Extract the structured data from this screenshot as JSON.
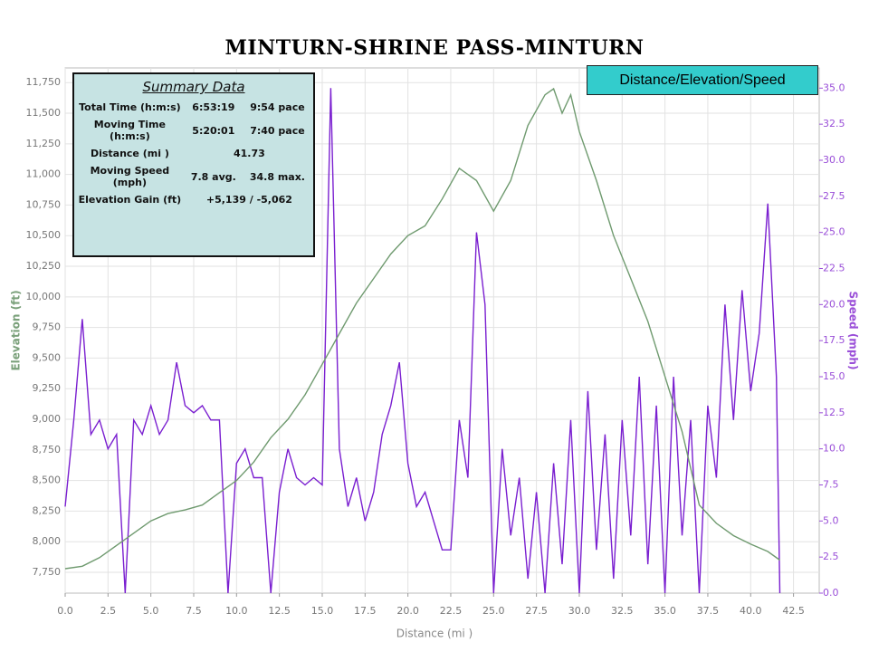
{
  "chart_data": {
    "type": "line",
    "title": "MINTURN-SHRINE PASS-MINTURN",
    "legend_label": "Distance/Elevation/Speed",
    "xlabel": "Distance (mi )",
    "ylabel": "Elevation (ft)",
    "y2label": "Speed (mph)",
    "xlim": [
      0,
      44
    ],
    "ylim": [
      7580,
      11870
    ],
    "y2lim": [
      0,
      36.4
    ],
    "grid": true,
    "xticks": [
      {
        "value": 0,
        "label": "0.0"
      },
      {
        "value": 2.5,
        "label": "2.5"
      },
      {
        "value": 5,
        "label": "5.0"
      },
      {
        "value": 7.5,
        "label": "7.5"
      },
      {
        "value": 10,
        "label": "10.0"
      },
      {
        "value": 12.5,
        "label": "12.5"
      },
      {
        "value": 15,
        "label": "15.0"
      },
      {
        "value": 17.5,
        "label": "17.5"
      },
      {
        "value": 20,
        "label": "20.0"
      },
      {
        "value": 22.5,
        "label": "22.5"
      },
      {
        "value": 25,
        "label": "25.0"
      },
      {
        "value": 27.5,
        "label": "27.5"
      },
      {
        "value": 30,
        "label": "30.0"
      },
      {
        "value": 32.5,
        "label": "32.5"
      },
      {
        "value": 35,
        "label": "35.0"
      },
      {
        "value": 37.5,
        "label": "37.5"
      },
      {
        "value": 40,
        "label": "40.0"
      },
      {
        "value": 42.5,
        "label": "42.5"
      }
    ],
    "yticks": [
      {
        "value": 7750,
        "label": "7,750"
      },
      {
        "value": 8000,
        "label": "8,000"
      },
      {
        "value": 8250,
        "label": "8,250"
      },
      {
        "value": 8500,
        "label": "8,500"
      },
      {
        "value": 8750,
        "label": "8,750"
      },
      {
        "value": 9000,
        "label": "9,000"
      },
      {
        "value": 9250,
        "label": "9,250"
      },
      {
        "value": 9500,
        "label": "9,500"
      },
      {
        "value": 9750,
        "label": "9,750"
      },
      {
        "value": 10000,
        "label": "10,000"
      },
      {
        "value": 10250,
        "label": "10,250"
      },
      {
        "value": 10500,
        "label": "10,500"
      },
      {
        "value": 10750,
        "label": "10,750"
      },
      {
        "value": 11000,
        "label": "11,000"
      },
      {
        "value": 11250,
        "label": "11,250"
      },
      {
        "value": 11500,
        "label": "11,500"
      },
      {
        "value": 11750,
        "label": "11,750"
      }
    ],
    "y2ticks": [
      {
        "value": 0,
        "label": "0.0"
      },
      {
        "value": 2.5,
        "label": "2.5"
      },
      {
        "value": 5,
        "label": "5.0"
      },
      {
        "value": 7.5,
        "label": "7.5"
      },
      {
        "value": 10,
        "label": "10.0"
      },
      {
        "value": 12.5,
        "label": "12.5"
      },
      {
        "value": 15,
        "label": "15.0"
      },
      {
        "value": 17.5,
        "label": "17.5"
      },
      {
        "value": 20,
        "label": "20.0"
      },
      {
        "value": 22.5,
        "label": "22.5"
      },
      {
        "value": 25,
        "label": "25.0"
      },
      {
        "value": 27.5,
        "label": "27.5"
      },
      {
        "value": 30,
        "label": "30.0"
      },
      {
        "value": 32.5,
        "label": "32.5"
      },
      {
        "value": 35,
        "label": "35.0"
      }
    ],
    "series": [
      {
        "color": "#6f9a6f",
        "axis": "y",
        "x": [
          0,
          1,
          2,
          3,
          4,
          5,
          6,
          7,
          8,
          9,
          10,
          11,
          12,
          13,
          14,
          15,
          16,
          17,
          18,
          19,
          20,
          21,
          22,
          23,
          24,
          25,
          26,
          27,
          28,
          28.5,
          29,
          29.5,
          30,
          31,
          32,
          33,
          34,
          35,
          36,
          37,
          38,
          39,
          40,
          41,
          41.7
        ],
        "values": [
          7780,
          7800,
          7870,
          7970,
          8070,
          8170,
          8230,
          8260,
          8300,
          8400,
          8500,
          8650,
          8850,
          9000,
          9200,
          9450,
          9700,
          9950,
          10150,
          10350,
          10500,
          10580,
          10800,
          11050,
          10950,
          10700,
          10950,
          11400,
          11650,
          11700,
          11500,
          11650,
          11350,
          10950,
          10500,
          10150,
          9800,
          9350,
          8900,
          8300,
          8150,
          8050,
          7980,
          7920,
          7850
        ]
      },
      {
        "color": "#7a1fd0",
        "axis": "y2",
        "x": [
          0,
          0.5,
          1,
          1.5,
          2,
          2.5,
          3,
          3.5,
          4,
          4.5,
          5,
          5.5,
          6,
          6.5,
          7,
          7.5,
          8,
          8.5,
          9,
          9.5,
          10,
          10.5,
          11,
          11.5,
          12,
          12.5,
          13,
          13.5,
          14,
          14.5,
          15,
          15.5,
          16,
          16.5,
          17,
          17.5,
          18,
          18.5,
          19,
          19.5,
          20,
          20.5,
          21,
          21.5,
          22,
          22.5,
          23,
          23.5,
          24,
          24.5,
          25,
          25.5,
          26,
          26.5,
          27,
          27.5,
          28,
          28.5,
          29,
          29.5,
          30,
          30.5,
          31,
          31.5,
          32,
          32.5,
          33,
          33.5,
          34,
          34.5,
          35,
          35.5,
          36,
          36.5,
          37,
          37.5,
          38,
          38.5,
          39,
          39.5,
          40,
          40.5,
          41,
          41.5,
          41.7
        ],
        "values": [
          6,
          12,
          19,
          11,
          12,
          10,
          11,
          0,
          12,
          11,
          13,
          11,
          12,
          16,
          13,
          12.5,
          13,
          12,
          12,
          0,
          9,
          10,
          8,
          8,
          0,
          7,
          10,
          8,
          7.5,
          8,
          7.5,
          35,
          10,
          6,
          8,
          5,
          7,
          11,
          13,
          16,
          9,
          6,
          7,
          5,
          3,
          3,
          12,
          8,
          25,
          20,
          0,
          10,
          4,
          8,
          1,
          7,
          0,
          9,
          2,
          12,
          0,
          14,
          3,
          11,
          1,
          12,
          4,
          15,
          2,
          13,
          0,
          15,
          4,
          12,
          0,
          13,
          8,
          20,
          12,
          21,
          14,
          18,
          27,
          15,
          0
        ]
      }
    ],
    "summary": {
      "title": "Summary Data",
      "rows": [
        [
          "Total Time (h:m:s)",
          "6:53:19",
          "9:54 pace"
        ],
        [
          "Moving Time (h:m:s)",
          "5:20:01",
          "7:40 pace"
        ],
        [
          "Distance (mi )",
          "41.73"
        ],
        [
          "Moving Speed (mph)",
          "7.8 avg.",
          "34.8 max."
        ],
        [
          "Elevation Gain (ft)",
          "+5,139 / -5,062"
        ]
      ]
    }
  }
}
